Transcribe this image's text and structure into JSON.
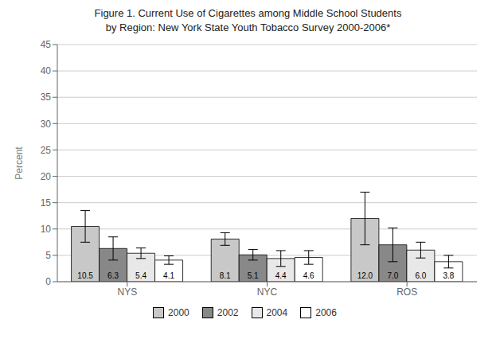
{
  "chart_data": {
    "type": "bar",
    "title": "Figure 1. Current Use of Cigarettes among Middle School Students",
    "subtitle": "by Region: New York State Youth Tobacco Survey 2000-2006*",
    "y_label": "Percent",
    "categories": [
      "NYS",
      "NYC",
      "ROS"
    ],
    "series": [
      {
        "name": "2000",
        "color": "#c8c8c8",
        "values": [
          10.5,
          8.1,
          12.0
        ],
        "value_labels": [
          "10.5",
          "8.1",
          "12.0"
        ],
        "errors": [
          3.0,
          1.2,
          5.0
        ]
      },
      {
        "name": "2002",
        "color": "#888888",
        "values": [
          6.3,
          5.1,
          7.0
        ],
        "value_labels": [
          "6.3",
          "5.1",
          "7.0"
        ],
        "errors": [
          2.2,
          1.0,
          3.2
        ]
      },
      {
        "name": "2004",
        "color": "#e8e8e8",
        "values": [
          5.4,
          4.4,
          6.0
        ],
        "value_labels": [
          "5.4",
          "4.4",
          "6.0"
        ],
        "errors": [
          1.0,
          1.5,
          1.5
        ]
      },
      {
        "name": "2006",
        "color": "#ffffff",
        "values": [
          4.1,
          4.6,
          3.8
        ],
        "value_labels": [
          "4.1",
          "4.6",
          "3.8"
        ],
        "errors": [
          0.8,
          1.3,
          1.2
        ]
      }
    ],
    "ylim": [
      0,
      45
    ],
    "yticks": [
      0,
      5,
      10,
      15,
      20,
      25,
      30,
      35,
      40,
      45
    ],
    "grid": true,
    "data_labels": true,
    "legend": "bottom"
  }
}
